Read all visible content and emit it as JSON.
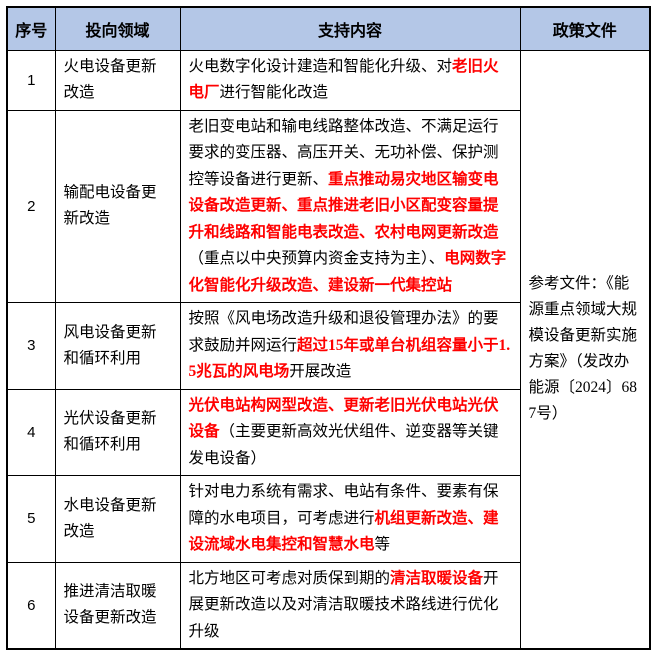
{
  "table": {
    "headers": [
      "序号",
      "投向领域",
      "支持内容",
      "政策文件"
    ],
    "colors": {
      "header_bg": "#b4c7e7",
      "highlight_red": "#ff0000",
      "border": "#000000",
      "text": "#000000"
    },
    "policy": {
      "text": "参考文件：《能源重点领域大规模设备更新实施方案》（发改办能源〔2024〕687号）"
    },
    "rows": [
      {
        "no": "1",
        "field": "火电设备更新改造",
        "support": [
          {
            "text": "火电数字化设计建造和智能化升级、对",
            "em": false
          },
          {
            "text": "老旧火电厂",
            "em": true
          },
          {
            "text": "进行智能化改造",
            "em": false
          }
        ]
      },
      {
        "no": "2",
        "field": "输配电设备更新改造",
        "support": [
          {
            "text": "老旧变电站和输电线路整体改造、不满足运行要求的变压器、高压开关、无功补偿、保护测控等设备进行更新、",
            "em": false
          },
          {
            "text": "重点推动易灾地区输变电设备改造更新、重点推进老旧小区配变容量提升和线路和智能电表改造、农村电网更新改造",
            "em": true
          },
          {
            "text": "（重点以中央预算内资金支持为主）、",
            "em": false
          },
          {
            "text": "电网数字化智能化升级改造、建设新一代集控站",
            "em": true
          }
        ]
      },
      {
        "no": "3",
        "field": "风电设备更新和循环利用",
        "support": [
          {
            "text": "按照《风电场改造升级和退役管理办法》的要求鼓励并网运行",
            "em": false
          },
          {
            "text": "超过15年或单台机组容量小于1.5兆瓦的风电场",
            "em": true
          },
          {
            "text": "开展改造",
            "em": false
          }
        ]
      },
      {
        "no": "4",
        "field": "光伏设备更新和循环利用",
        "support": [
          {
            "text": "光伏电站构网型改造、更新老旧光伏电站光伏设备",
            "em": true
          },
          {
            "text": "（主要更新高效光伏组件、逆变器等关键发电设备）",
            "em": false
          }
        ]
      },
      {
        "no": "5",
        "field": "水电设备更新改造",
        "support": [
          {
            "text": "针对电力系统有需求、电站有条件、要素有保障的水电项目，可考虑进行",
            "em": false
          },
          {
            "text": "机组更新改造、建设流域水电集控和智慧水电",
            "em": true
          },
          {
            "text": "等",
            "em": false
          }
        ]
      },
      {
        "no": "6",
        "field": "推进清洁取暖设备更新改造",
        "support": [
          {
            "text": "北方地区可考虑对质保到期的",
            "em": false
          },
          {
            "text": "清洁取暖设备",
            "em": true
          },
          {
            "text": "开展更新改造以及对清洁取暖技术路线进行优化升级",
            "em": false
          }
        ]
      }
    ]
  }
}
